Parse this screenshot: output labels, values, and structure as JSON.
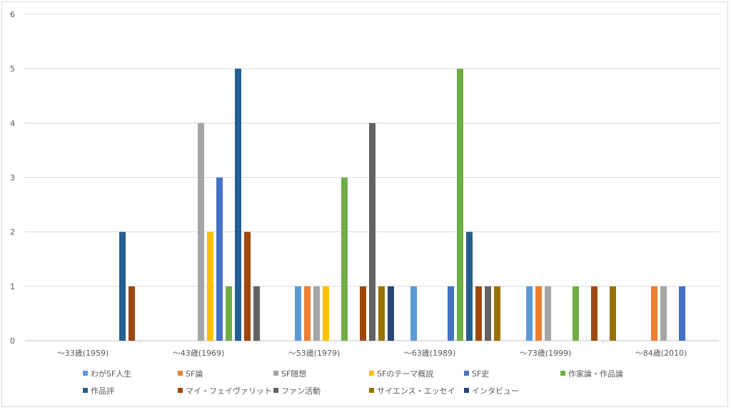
{
  "chart_data": {
    "type": "bar",
    "categories": [
      "〜33歳(1959)",
      "〜43歳(1969)",
      "〜53歳(1979)",
      "〜63歳(1989)",
      "〜73歳(1999)",
      "〜84歳(2010)"
    ],
    "ylim": [
      0,
      6
    ],
    "yticks": [
      0,
      1,
      2,
      3,
      4,
      5,
      6
    ],
    "grid": true,
    "legend_position": "bottom",
    "series": [
      {
        "name": "わがSF人生",
        "color": "#5B9BD5",
        "values": [
          0,
          0,
          1,
          1,
          1,
          0
        ]
      },
      {
        "name": "SF論",
        "color": "#ED7D31",
        "values": [
          0,
          0,
          1,
          0,
          1,
          1
        ]
      },
      {
        "name": "SF随想",
        "color": "#A5A5A5",
        "values": [
          0,
          4,
          1,
          0,
          1,
          1
        ]
      },
      {
        "name": "SFのテーマ概説",
        "color": "#FFC000",
        "values": [
          0,
          2,
          1,
          0,
          0,
          0
        ]
      },
      {
        "name": "SF史",
        "color": "#4472C4",
        "values": [
          0,
          3,
          0,
          1,
          0,
          1
        ]
      },
      {
        "name": "作家論・作品論",
        "color": "#70AD47",
        "values": [
          0,
          1,
          3,
          5,
          1,
          0
        ]
      },
      {
        "name": "作品評",
        "color": "#255E91",
        "values": [
          2,
          5,
          0,
          2,
          0,
          0
        ]
      },
      {
        "name": "マイ・フェイヴァリット",
        "color": "#9E480E",
        "values": [
          1,
          2,
          1,
          1,
          1,
          0
        ]
      },
      {
        "name": "ファン活動",
        "color": "#636363",
        "values": [
          0,
          1,
          4,
          1,
          0,
          0
        ]
      },
      {
        "name": "サイエンス・エッセイ",
        "color": "#997300",
        "values": [
          0,
          0,
          1,
          1,
          1,
          0
        ]
      },
      {
        "name": "インタビュー",
        "color": "#264478",
        "values": [
          0,
          0,
          1,
          0,
          0,
          0
        ]
      }
    ]
  }
}
